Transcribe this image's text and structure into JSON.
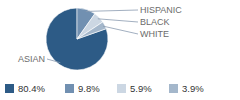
{
  "chart_data": {
    "type": "pie",
    "categories": [
      "ASIAN",
      "HISPANIC",
      "BLACK",
      "WHITE"
    ],
    "values": [
      80.4,
      9.8,
      5.9,
      3.9
    ],
    "value_labels": [
      "80.4%",
      "9.8%",
      "5.9%",
      "3.9%"
    ],
    "colors": [
      "#2d5b86",
      "#7190b1",
      "#ccd7e3",
      "#a4b7cb"
    ]
  }
}
